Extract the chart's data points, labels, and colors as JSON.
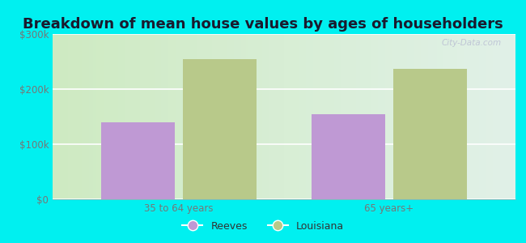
{
  "title": "Breakdown of mean house values by ages of householders",
  "categories": [
    "35 to 64 years",
    "65 years+"
  ],
  "series": {
    "Reeves": [
      140000,
      155000
    ],
    "Louisiana": [
      255000,
      237000
    ]
  },
  "bar_colors": {
    "Reeves": "#bf99d4",
    "Louisiana": "#b8c98a"
  },
  "ylim": [
    0,
    300000
  ],
  "yticks": [
    0,
    100000,
    200000,
    300000
  ],
  "ytick_labels": [
    "$0",
    "$100k",
    "$200k",
    "$300k"
  ],
  "background_color": "#00f0f0",
  "title_fontsize": 13,
  "tick_fontsize": 8.5,
  "legend_fontsize": 9,
  "bar_width": 0.35,
  "watermark_text": "City-Data.com"
}
